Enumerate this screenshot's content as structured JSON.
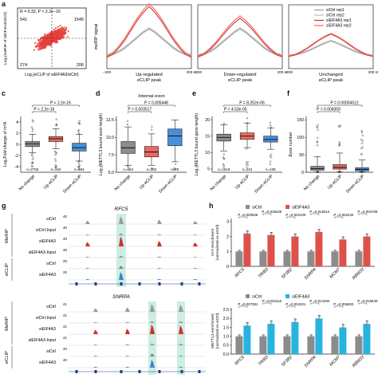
{
  "panels": {
    "a": {
      "letter": "a",
      "scatter": {
        "stat": "R = 0.32, P < 2.2e−16",
        "q_tl": "541",
        "q_tr": "1545",
        "q_bl": "274",
        "q_br": "206",
        "ylabel": "Log₂(meRIP of siEIF4A3/siCtrl)",
        "xlabel": "Log₂(eCLIP of siEIF4A3/siCtrl)",
        "point_color": "#e8413c"
      },
      "profile": {
        "ylabel": "meRIP signal",
        "groups": [
          "Up-regulated\neCLIP peak",
          "Down-regulated\neCLIP peak",
          "Unchanged\neCLIP peak"
        ],
        "x_left": "−200",
        "x_right": "200 nt",
        "legend": [
          "siCtrl rep1",
          "siCtrl rep2",
          "siEIF4A3 rep1",
          "siEIF4A3 rep2"
        ],
        "colors": [
          "#9a9a9a",
          "#bdbdbd",
          "#d0312d",
          "#ef6b5e"
        ]
      }
    },
    "c": {
      "letter": "c",
      "ylabel": "Log₂Fold change of m⁶A",
      "categories": [
        "No change",
        "Up eCLIP",
        "Down eCLIP"
      ],
      "pvals": [
        "P < 2.2e-16",
        "P < 2.2e-16"
      ],
      "ns": [
        "n=2755",
        "n=194",
        "n=194"
      ],
      "colors": [
        "#8c8c8c",
        "#e96a62",
        "#4a8fd9"
      ],
      "yticks": [
        "4",
        "2",
        "0",
        "-2",
        "-4"
      ]
    },
    "d": {
      "letter": "d",
      "title": "Internal exon",
      "ylabel": "Log₂(METTL3 bound exon length)",
      "categories": [
        "No change",
        "Up eCLIP",
        "Down eCLIP"
      ],
      "pvals": [
        "P = 0.003517",
        "P = 0.005448"
      ],
      "ns": [
        "n=694",
        "n=132",
        "n=76"
      ],
      "colors": [
        "#8c8c8c",
        "#e96a62",
        "#4a8fd9"
      ],
      "yticks": [
        "12.5",
        "10.0",
        "7.5",
        "5.0"
      ]
    },
    "e": {
      "letter": "e",
      "ylabel": "Log₂(METTL3 bound gene length)",
      "categories": [
        "No change",
        "Up eCLIP",
        "Down eCLIP"
      ],
      "pvals": [
        "P = 4.53e-05",
        "P = 8.252e-06"
      ],
      "ns": [
        "n=1519",
        "n=224",
        "n=108"
      ],
      "colors": [
        "#8c8c8c",
        "#e96a62",
        "#4a8fd9"
      ],
      "yticks": [
        "20",
        "15",
        "10",
        "5"
      ]
    },
    "f": {
      "letter": "f",
      "ylabel": "Exon number",
      "categories": [
        "No change",
        "Up eCLIP",
        "Down eCLIP"
      ],
      "pvals": [
        "P = 0.004359",
        "P = 0.00004512"
      ],
      "colors": [
        "#8c8c8c",
        "#e96a62",
        "#4a8fd9"
      ],
      "yticks": [
        "150",
        "100",
        "50",
        "0"
      ]
    },
    "g": {
      "letter": "g",
      "genes": [
        {
          "name": "RFC5",
          "tracks": [
            {
              "label": "siCtrl",
              "scale": "40"
            },
            {
              "label": "siCtrl-Input",
              "scale": "40"
            },
            {
              "label": "siEIF4A3",
              "scale": "40"
            },
            {
              "label": "siEIF4A3-Input",
              "scale": "40"
            },
            {
              "label": "siCtrl",
              "scale": "20"
            },
            {
              "label": "siEIF4A3",
              "scale": "20"
            }
          ]
        },
        {
          "name": "SNRPA",
          "tracks": [
            {
              "label": "siCtrl",
              "scale": "41"
            },
            {
              "label": "siCtrl-Input",
              "scale": "41"
            },
            {
              "label": "siEIF4A3",
              "scale": "41"
            },
            {
              "label": "siEIF4A3-Input",
              "scale": "41"
            },
            {
              "label": "siCtrl",
              "scale": "40"
            },
            {
              "label": "siEIF4A3",
              "scale": "40"
            }
          ]
        }
      ],
      "group_labels": [
        "MeRIP",
        "eCLIP"
      ],
      "colors": {
        "merip_ctrl": "#9a9a9a",
        "merip_kd": "#d0312d",
        "eclip_ctrl": "#8a8a8a",
        "eclip_kd": "#3a86c8",
        "highlight": "#cdeee2"
      }
    },
    "h": {
      "letter": "h",
      "top": {
        "ylabel": "m⁶A enrichment\n(normalized vs siCtrl)",
        "legend": [
          "siCtrl",
          "siEIF4A3"
        ],
        "categories": [
          "RFC5",
          "TRIB3",
          "SF3B2",
          "SNRPA",
          "MCM7",
          "RBM33"
        ],
        "pvals": [
          "P =0.000526",
          "P =0.039429",
          "P =0.002100",
          "P =0.015014",
          "P =0.002432",
          "P =0.004769"
        ],
        "ctrl_color": "#8c8c8c",
        "kd_color": "#e0504a",
        "yticks": [
          "3",
          "2",
          "1",
          "0"
        ]
      },
      "bottom": {
        "ylabel": "METTL3 enrichment\n(normalized vs siCtrl)",
        "legend": [
          "siCtrl",
          "siEIF4A3"
        ],
        "categories": [
          "RFC5",
          "TRIB3",
          "SF3B2",
          "SNRPA",
          "MCM7",
          "RBM33"
        ],
        "pvals": [
          "P =0.007381",
          "P =0.001110",
          "P =0.004321",
          "P =0.014282",
          "P =0.006822",
          "P =0.015940"
        ],
        "ctrl_color": "#8c8c8c",
        "kd_color": "#27b4e0",
        "yticks": [
          "2.5",
          "2.0",
          "1.5",
          "1.0",
          "0.5",
          "0.0"
        ]
      }
    }
  },
  "chart_data": [
    {
      "type": "scatter",
      "panel": "a",
      "title": "",
      "xlabel": "Log₂(eCLIP of siEIF4A3/siCtrl)",
      "ylabel": "Log₂(meRIP of siEIF4A3/siCtrl)",
      "annotation": "R = 0.32, P < 2.2e−16",
      "quadrant_counts": {
        "top_left": 541,
        "top_right": 1545,
        "bottom_left": 274,
        "bottom_right": 206
      }
    },
    {
      "type": "line",
      "panel": "a",
      "ylabel": "meRIP signal",
      "series": [
        {
          "name": "siCtrl rep1",
          "values": [
            0.5,
            0.52,
            0.56,
            0.62,
            0.7,
            0.78,
            0.86,
            0.92,
            0.86,
            0.78,
            0.7,
            0.62,
            0.56,
            0.52,
            0.5
          ]
        },
        {
          "name": "siCtrl rep2",
          "values": [
            0.52,
            0.54,
            0.58,
            0.64,
            0.72,
            0.8,
            0.88,
            0.94,
            0.88,
            0.8,
            0.72,
            0.64,
            0.58,
            0.54,
            0.52
          ]
        },
        {
          "name": "siEIF4A3 rep1",
          "values": [
            0.48,
            0.52,
            0.6,
            0.7,
            0.82,
            0.94,
            1.04,
            1.12,
            1.04,
            0.94,
            0.82,
            0.7,
            0.6,
            0.52,
            0.48
          ]
        },
        {
          "name": "siEIF4A3 rep2",
          "values": [
            0.5,
            0.54,
            0.62,
            0.72,
            0.84,
            0.96,
            1.06,
            1.14,
            1.06,
            0.96,
            0.84,
            0.72,
            0.62,
            0.54,
            0.5
          ]
        }
      ],
      "groups": [
        "Up-regulated eCLIP peak",
        "Down-regulated eCLIP peak",
        "Unchanged eCLIP peak"
      ]
    },
    {
      "type": "box",
      "panel": "c",
      "categories": [
        "No change",
        "Up eCLIP",
        "Down eCLIP"
      ],
      "ylabel": "Log₂Fold change of m⁶A",
      "ylim": [
        -5,
        5
      ],
      "boxes": [
        {
          "q1": -0.4,
          "median": 0.1,
          "q3": 0.5,
          "low": -1.5,
          "high": 1.8
        },
        {
          "q1": 0.5,
          "median": 1.0,
          "q3": 1.4,
          "low": -0.8,
          "high": 2.8
        },
        {
          "q1": -1.2,
          "median": -0.6,
          "q3": 0.2,
          "low": -3.0,
          "high": 1.8
        }
      ]
    },
    {
      "type": "box",
      "panel": "d",
      "categories": [
        "No change",
        "Up eCLIP",
        "Down eCLIP"
      ],
      "ylabel": "Log₂(METTL3 bound exon length)",
      "ylim": [
        5,
        13
      ],
      "boxes": [
        {
          "q1": 7.7,
          "median": 8.5,
          "q3": 9.4,
          "low": 6.0,
          "high": 11.5
        },
        {
          "q1": 7.2,
          "median": 7.9,
          "q3": 8.7,
          "low": 6.0,
          "high": 10.5
        },
        {
          "q1": 8.8,
          "median": 10.2,
          "q3": 11.2,
          "low": 6.5,
          "high": 12.5
        }
      ]
    },
    {
      "type": "box",
      "panel": "e",
      "categories": [
        "No change",
        "Up eCLIP",
        "Down eCLIP"
      ],
      "ylabel": "Log₂(METTL3 bound gene length)",
      "ylim": [
        4,
        21
      ],
      "boxes": [
        {
          "q1": 13.5,
          "median": 14.6,
          "q3": 15.6,
          "low": 10.5,
          "high": 18.5
        },
        {
          "q1": 14.0,
          "median": 15.0,
          "q3": 16.0,
          "low": 11.5,
          "high": 19.0
        },
        {
          "q1": 13.2,
          "median": 14.0,
          "q3": 15.0,
          "low": 11.0,
          "high": 17.5
        }
      ]
    },
    {
      "type": "box",
      "panel": "f",
      "categories": [
        "No change",
        "Up eCLIP",
        "Down eCLIP"
      ],
      "ylabel": "Exon number",
      "ylim": [
        0,
        160
      ],
      "boxes": [
        {
          "q1": 6,
          "median": 10,
          "q3": 17,
          "low": 1,
          "high": 45
        },
        {
          "q1": 9,
          "median": 14,
          "q3": 22,
          "low": 1,
          "high": 55
        },
        {
          "q1": 4,
          "median": 8,
          "q3": 13,
          "low": 1,
          "high": 35
        }
      ]
    },
    {
      "type": "bar",
      "panel": "h-top",
      "categories": [
        "RFC5",
        "TRIB3",
        "SF3B2",
        "SNRPA",
        "MCM7",
        "RBM33"
      ],
      "ylabel": "m⁶A enrichment (normalized vs siCtrl)",
      "ylim": [
        0,
        3.2
      ],
      "series": [
        {
          "name": "siCtrl",
          "values": [
            1,
            1,
            1,
            1,
            1,
            1
          ]
        },
        {
          "name": "siEIF4A3",
          "values": [
            2.2,
            2.1,
            2.0,
            2.3,
            1.8,
            2.0
          ]
        }
      ]
    },
    {
      "type": "bar",
      "panel": "h-bottom",
      "categories": [
        "RFC5",
        "TRIB3",
        "SF3B2",
        "SNRPA",
        "MCM7",
        "RBM33"
      ],
      "ylabel": "METTL3 enrichment (normalized vs siCtrl)",
      "ylim": [
        0,
        2.6
      ],
      "series": [
        {
          "name": "siCtrl",
          "values": [
            1,
            1,
            1,
            1,
            1,
            1
          ]
        },
        {
          "name": "siEIF4A3",
          "values": [
            1.6,
            1.7,
            1.8,
            2.0,
            1.5,
            1.7
          ]
        }
      ]
    }
  ]
}
